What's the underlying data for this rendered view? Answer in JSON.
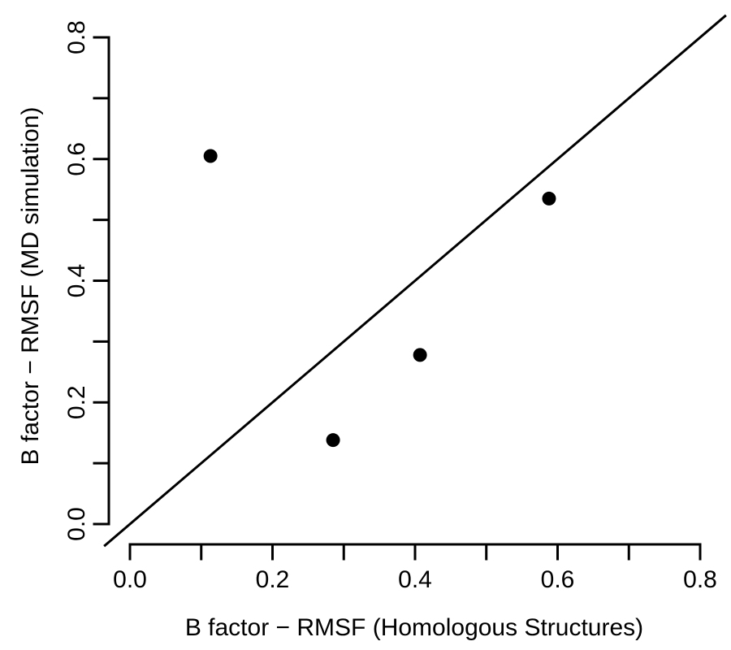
{
  "chart_data": {
    "type": "scatter",
    "title": "",
    "xlabel": "B factor − RMSF (Homologous Structures)",
    "ylabel": "B factor − RMSF (MD simulation)",
    "xlim": [
      0.0,
      0.8
    ],
    "ylim": [
      0.0,
      0.8
    ],
    "x_ticks": [
      0.0,
      0.1,
      0.2,
      0.3,
      0.4,
      0.5,
      0.6,
      0.7,
      0.8
    ],
    "y_ticks": [
      0.0,
      0.1,
      0.2,
      0.3,
      0.4,
      0.5,
      0.6,
      0.7,
      0.8
    ],
    "x_tick_labels": [
      "0.0",
      "0.2",
      "0.4",
      "0.6",
      "0.8"
    ],
    "y_tick_labels": [
      "0.0",
      "0.2",
      "0.4",
      "0.6",
      "0.8"
    ],
    "grid": false,
    "reference_line": {
      "slope": 1,
      "intercept": 0
    },
    "points": [
      {
        "x": 0.113,
        "y": 0.605
      },
      {
        "x": 0.285,
        "y": 0.138
      },
      {
        "x": 0.407,
        "y": 0.278
      },
      {
        "x": 0.588,
        "y": 0.535
      }
    ],
    "marker_color": "#000000"
  }
}
